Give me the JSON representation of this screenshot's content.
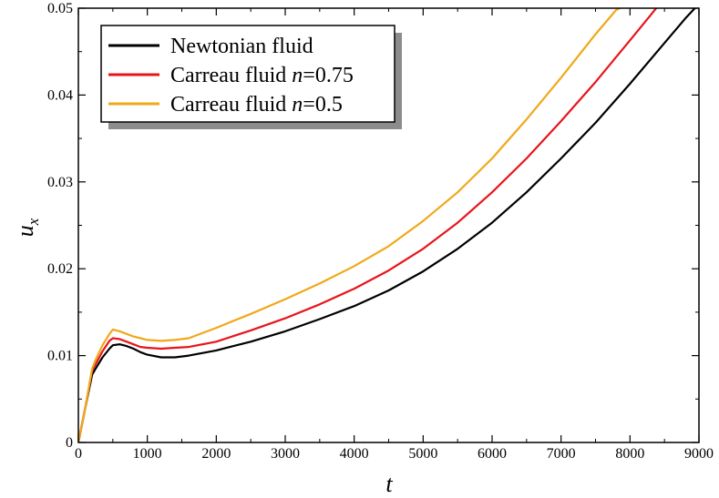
{
  "chart_data": {
    "type": "line",
    "xlabel": "t",
    "ylabel": {
      "base": "u",
      "subscript": "x"
    },
    "xlim": [
      0,
      9000
    ],
    "ylim": [
      0,
      0.05
    ],
    "x_ticks": [
      0,
      1000,
      2000,
      3000,
      4000,
      5000,
      6000,
      7000,
      8000,
      9000
    ],
    "x_tick_labels": [
      "0",
      "1000",
      "2000",
      "3000",
      "4000",
      "5000",
      "6000",
      "7000",
      "8000",
      "9000"
    ],
    "y_ticks": [
      0,
      0.01,
      0.02,
      0.03,
      0.04,
      0.05
    ],
    "y_tick_labels": [
      "0",
      "0.01",
      "0.02",
      "0.03",
      "0.04",
      "0.05"
    ],
    "grid": false,
    "legend_position": "top-left",
    "series": [
      {
        "name": "Newtonian fluid",
        "label_parts": [
          "Newtonian fluid"
        ],
        "color": "#000000",
        "x": [
          0,
          100,
          200,
          250,
          350,
          450,
          500,
          600,
          700,
          800,
          900,
          1000,
          1200,
          1400,
          1600,
          2000,
          2500,
          3000,
          3500,
          4000,
          4500,
          5000,
          5500,
          6000,
          6500,
          7000,
          7500,
          8000,
          8500,
          8800,
          9000
        ],
        "y": [
          0,
          0.004,
          0.0078,
          0.0085,
          0.0098,
          0.0108,
          0.0112,
          0.0113,
          0.0111,
          0.0108,
          0.0104,
          0.0101,
          0.0098,
          0.0098,
          0.01,
          0.0106,
          0.0116,
          0.0128,
          0.0142,
          0.0157,
          0.0175,
          0.0197,
          0.0223,
          0.0253,
          0.0288,
          0.0327,
          0.0368,
          0.0413,
          0.046,
          0.0488,
          0.0505
        ]
      },
      {
        "name": "Carreau fluid n=0.75",
        "label_parts": [
          "Carreau fluid ",
          "n",
          "=0.75"
        ],
        "color": "#e8141c",
        "x": [
          0,
          100,
          200,
          250,
          350,
          450,
          500,
          600,
          700,
          800,
          900,
          1000,
          1200,
          1400,
          1600,
          2000,
          2500,
          3000,
          3500,
          4000,
          4500,
          5000,
          5500,
          6000,
          6500,
          7000,
          7500,
          8000,
          8300,
          8400
        ],
        "y": [
          0,
          0.004,
          0.0083,
          0.009,
          0.0105,
          0.0117,
          0.012,
          0.0119,
          0.0116,
          0.0113,
          0.011,
          0.0109,
          0.0108,
          0.0109,
          0.011,
          0.0116,
          0.0129,
          0.0143,
          0.0159,
          0.0177,
          0.0198,
          0.0223,
          0.0253,
          0.0288,
          0.0327,
          0.037,
          0.0415,
          0.0463,
          0.0492,
          0.0502
        ]
      },
      {
        "name": "Carreau fluid n=0.5",
        "label_parts": [
          "Carreau fluid ",
          "n",
          "=0.5"
        ],
        "color": "#f0a818",
        "x": [
          0,
          100,
          200,
          250,
          350,
          450,
          500,
          600,
          700,
          800,
          900,
          1000,
          1200,
          1400,
          1600,
          2000,
          2500,
          3000,
          3500,
          4000,
          4500,
          5000,
          5500,
          6000,
          6500,
          7000,
          7500,
          7800,
          7900
        ],
        "y": [
          0,
          0.004,
          0.0085,
          0.0095,
          0.0112,
          0.0125,
          0.013,
          0.0128,
          0.0125,
          0.0122,
          0.012,
          0.0118,
          0.0117,
          0.0118,
          0.012,
          0.0132,
          0.0148,
          0.0165,
          0.0183,
          0.0203,
          0.0226,
          0.0255,
          0.0288,
          0.0327,
          0.0372,
          0.042,
          0.047,
          0.0498,
          0.0502
        ]
      }
    ]
  }
}
